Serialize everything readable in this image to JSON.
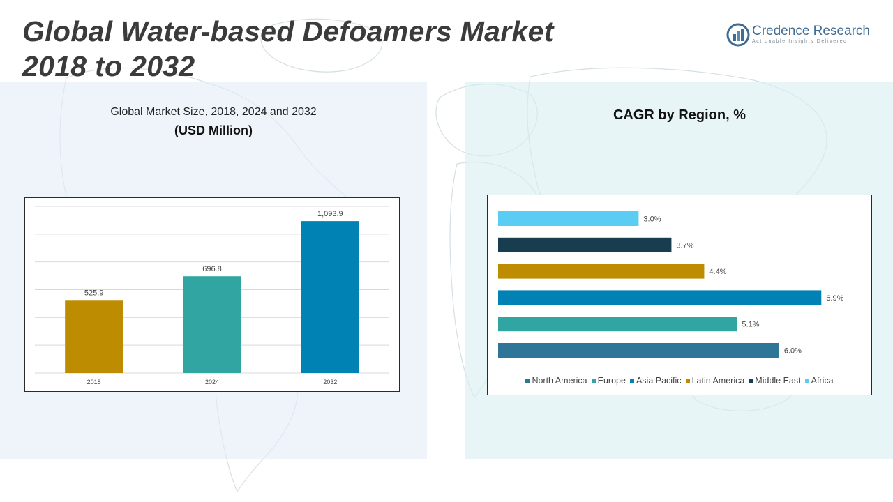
{
  "page": {
    "title_line1": "Global Water-based Defoamers Market",
    "title_line2": "2018 to 2032"
  },
  "logo": {
    "name": "Credence Research",
    "tagline": "Actionable Insights Delivered",
    "icon": "bar-chart-circle-icon"
  },
  "colors": {
    "north_america": "#2E7597",
    "europe": "#31A5A2",
    "asia_pacific": "#0082B4",
    "latin_america": "#BE8C00",
    "middle_east": "#173D4F",
    "africa": "#5BCCF3"
  },
  "chart_data": [
    {
      "type": "bar",
      "title": "Global Market Size, 2018, 2024 and 2032",
      "subtitle": "(USD Million)",
      "categories": [
        "2018",
        "2024",
        "2032"
      ],
      "values": [
        525.9,
        696.8,
        1093.9
      ],
      "value_labels": [
        "525.9",
        "696.8",
        "1,093.9"
      ],
      "bar_colors": [
        "#BE8C00",
        "#31A5A2",
        "#0082B4"
      ],
      "ylim": [
        0,
        1200
      ],
      "grid": true
    },
    {
      "type": "bar",
      "orientation": "horizontal",
      "title": "CAGR by Region, %",
      "categories": [
        "Africa",
        "Middle East",
        "Latin America",
        "Asia Pacific",
        "Europe",
        "North America"
      ],
      "values": [
        3.0,
        3.7,
        4.4,
        6.9,
        5.1,
        6.0
      ],
      "value_labels": [
        "3.0%",
        "3.7%",
        "4.4%",
        "6.9%",
        "5.1%",
        "6.0%"
      ],
      "bar_colors": [
        "#5BCCF3",
        "#173D4F",
        "#BE8C00",
        "#0082B4",
        "#31A5A2",
        "#2E7597"
      ],
      "xlim": [
        0,
        7.0
      ],
      "legend": {
        "placement": "bottom",
        "entries": [
          "North America",
          "Europe",
          "Asia Pacific",
          "Latin America",
          "Middle East",
          "Africa"
        ]
      }
    }
  ]
}
